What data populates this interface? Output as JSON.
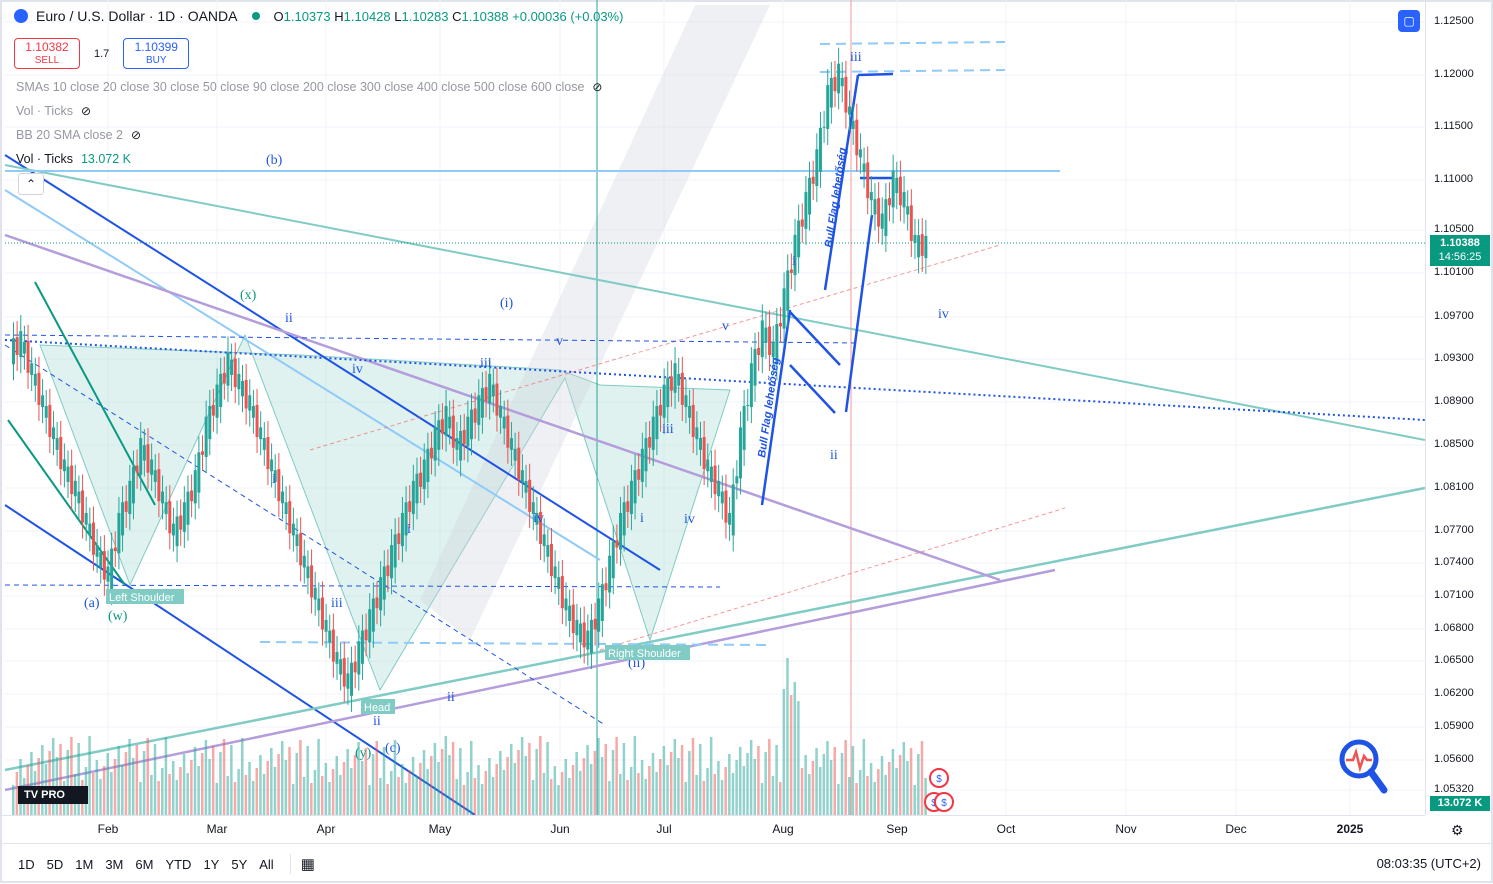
{
  "header": {
    "title": "Euro / U.S. Dollar · 1D · OANDA",
    "open_label": "O",
    "open": "1.10373",
    "high_label": "H",
    "high": "1.10428",
    "low_label": "L",
    "low": "1.10283",
    "close_label": "C",
    "close": "1.10388",
    "change": "+0.00036 (+0.03%)"
  },
  "trade": {
    "sell_price": "1.10382",
    "sell_label": "SELL",
    "spread": "1.7",
    "buy_price": "1.10399",
    "buy_label": "BUY"
  },
  "indicators": {
    "smas": "SMAs 10 close 20 close 30 close 50 close 90 close 200 close 300 close 400 close 500 close 600 close",
    "vol1": "Vol · Ticks",
    "bb": "BB 20 SMA close 2",
    "vol2": "Vol · Ticks",
    "vol2_value": "13.072 K"
  },
  "price_axis": {
    "ticks": [
      "1.12500",
      "1.12000",
      "1.11500",
      "1.11000",
      "1.10500",
      "1.10100",
      "1.09700",
      "1.09300",
      "1.08900",
      "1.08500",
      "1.08100",
      "1.07700",
      "1.07400",
      "1.07100",
      "1.06800",
      "1.06500",
      "1.06200",
      "1.05900",
      "1.05600",
      "1.05320"
    ],
    "last_price": "1.10388",
    "countdown": "14:56:25",
    "volume_tag": "13.072 K"
  },
  "time_axis": {
    "months": [
      "Feb",
      "Mar",
      "Apr",
      "May",
      "Jun",
      "Jul",
      "Aug",
      "Sep",
      "Oct",
      "Nov",
      "Dec",
      "2025"
    ]
  },
  "annotations": {
    "b": "(b)",
    "x": "(x)",
    "i_paren": "(i)",
    "ii_paren": "(ii)",
    "a": "(a)",
    "w": "(w)",
    "y": "(y)",
    "c": "(c)",
    "ii_1": "ii",
    "iv_1": "iv",
    "iii_1": "iii",
    "v_1": "v",
    "i_1": "i",
    "i_2": "i",
    "iii_2": "iii",
    "iv_2": "iv",
    "ii_2": "ii",
    "iii_3": "iii",
    "i_3": "i",
    "iv_3": "iv",
    "v_2": "v",
    "i_4": "i",
    "ii_3": "ii",
    "iii_4": "iii",
    "iv_4": "iv",
    "ii_4": "ii",
    "left_shoulder": "Left Shoulder",
    "right_shoulder": "Right Shoulder",
    "head": "Head",
    "bull_flag_1": "Bull Flag lehetőség",
    "bull_flag_2": "Bull Flag lehetőség"
  },
  "bottom_bar": {
    "ranges": [
      "1D",
      "5D",
      "1M",
      "3M",
      "6M",
      "YTD",
      "1Y",
      "5Y",
      "All"
    ],
    "clock": "08:03:35 (UTC+2)"
  },
  "logo": "TV PRO",
  "colors": {
    "up": "#26a69a",
    "down": "#ef5350",
    "accent": "#2962ff",
    "teal_line": "#80cbc4",
    "purple_line": "#b39ddb",
    "last_price": "#089981"
  },
  "chart_data": {
    "type": "candlestick",
    "series": [
      {
        "name": "EUR/USD daily (approx)",
        "close": [
          1.095,
          1.092,
          1.089,
          1.086,
          1.083,
          1.081,
          1.078,
          1.075,
          1.073,
          1.078,
          1.081,
          1.085,
          1.083,
          1.08,
          1.077,
          1.079,
          1.082,
          1.087,
          1.09,
          1.093,
          1.091,
          1.089,
          1.086,
          1.083,
          1.08,
          1.077,
          1.074,
          1.071,
          1.068,
          1.065,
          1.063,
          1.066,
          1.069,
          1.072,
          1.075,
          1.078,
          1.081,
          1.083,
          1.086,
          1.088,
          1.085,
          1.087,
          1.089,
          1.091,
          1.088,
          1.085,
          1.082,
          1.079,
          1.076,
          1.073,
          1.07,
          1.068,
          1.067,
          1.07,
          1.074,
          1.078,
          1.081,
          1.084,
          1.087,
          1.09,
          1.092,
          1.089,
          1.086,
          1.083,
          1.081,
          1.078,
          1.086,
          1.092,
          1.096,
          1.094,
          1.099,
          1.104,
          1.108,
          1.112,
          1.118,
          1.12,
          1.116,
          1.112,
          1.108,
          1.106,
          1.11,
          1.108,
          1.104,
          1.1039
        ]
      }
    ],
    "ylim": [
      1.0532,
      1.125
    ]
  }
}
